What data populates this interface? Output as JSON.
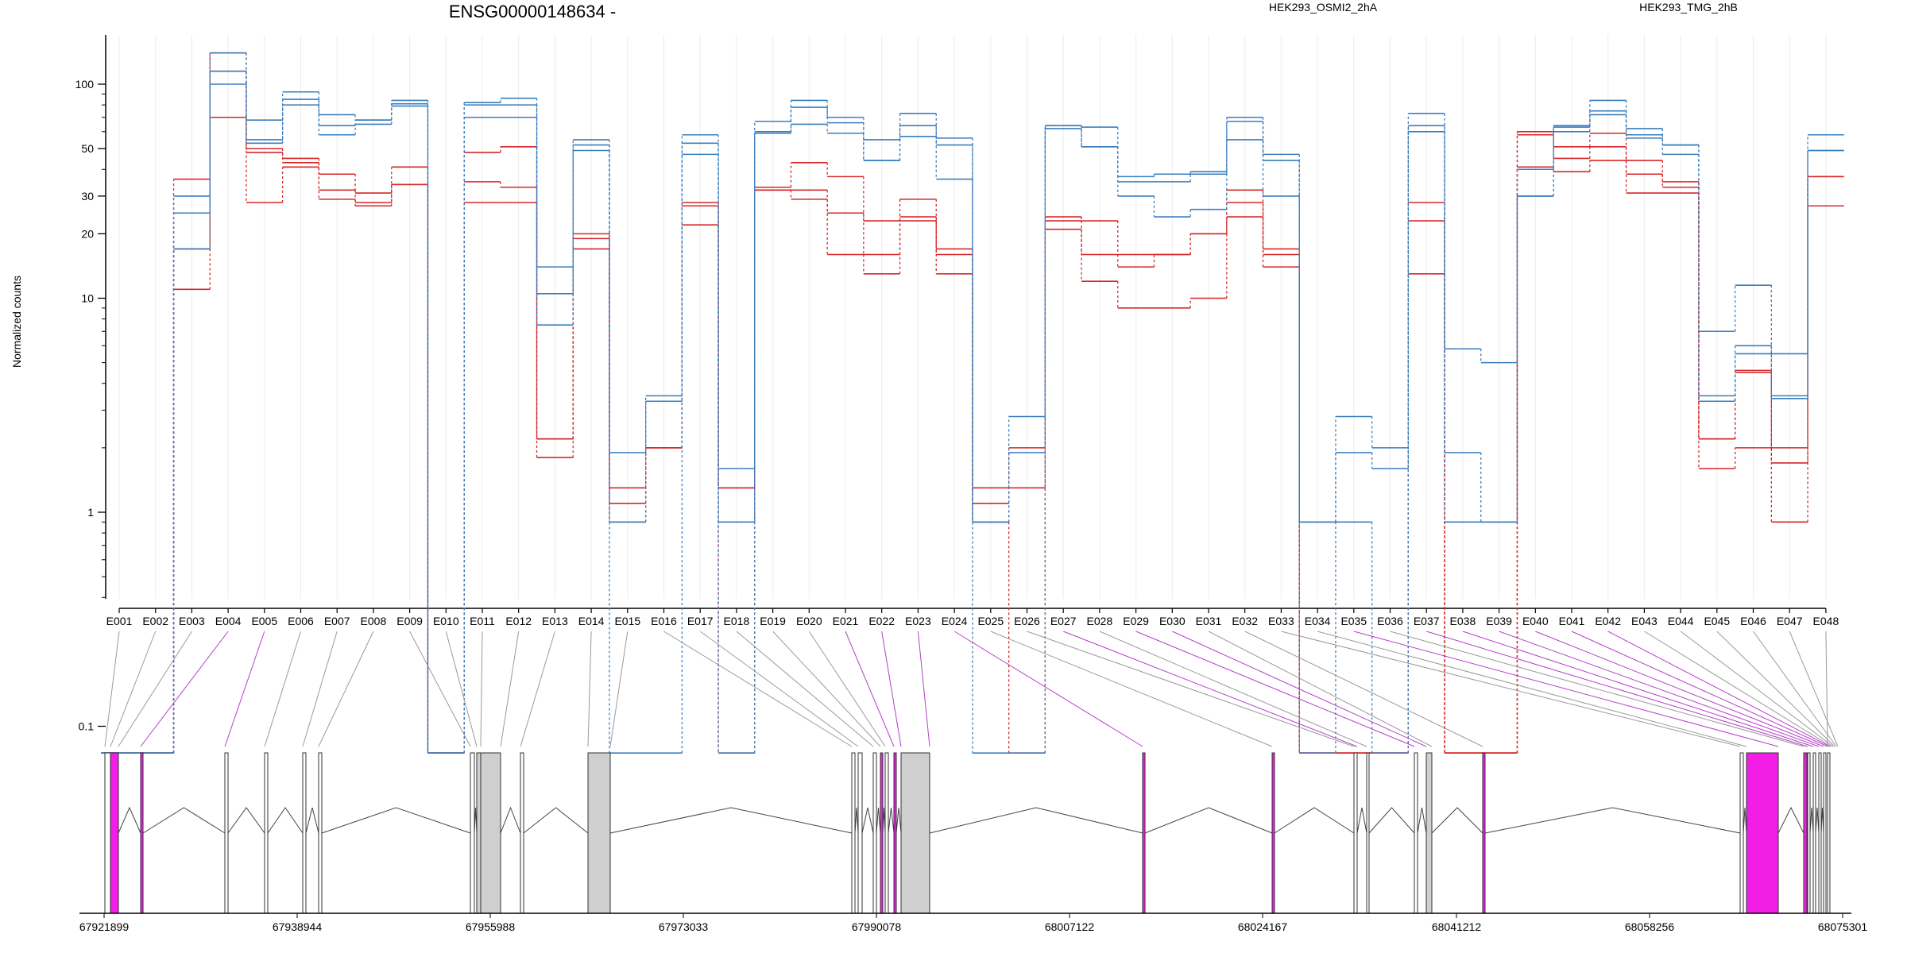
{
  "header": {
    "title": "ENSG00000148634 -",
    "legend": [
      {
        "name": "HEK293_OSMI2_2hA",
        "color": "#d62728"
      },
      {
        "name": "HEK293_TMG_2hB",
        "color": "#3a7ebd"
      }
    ]
  },
  "colors": {
    "red": "#d62728",
    "blue": "#3a7ebd",
    "exon_gray": "#cfcfcf",
    "exon_magenta": "#f21ee6",
    "connector_gray": "#9a9a9a",
    "connector_purple": "#b440c8"
  },
  "chart_data": {
    "type": "line",
    "ylabel": "Normalized counts",
    "yscale": "log",
    "yticks": [
      0.1,
      1,
      10,
      20,
      30,
      50,
      100
    ],
    "ytick_labels": [
      "0.1",
      "1",
      "10",
      "20",
      "30",
      "50",
      "100"
    ],
    "categories": [
      "E001",
      "E002",
      "E003",
      "E004",
      "E005",
      "E006",
      "E007",
      "E008",
      "E009",
      "E010",
      "E011",
      "E012",
      "E013",
      "E014",
      "E015",
      "E016",
      "E017",
      "E018",
      "E019",
      "E020",
      "E021",
      "E022",
      "E023",
      "E024",
      "E025",
      "E026",
      "E027",
      "E028",
      "E029",
      "E030",
      "E031",
      "E032",
      "E033",
      "E034",
      "E035",
      "E036",
      "E037",
      "E038",
      "E039",
      "E040",
      "E041",
      "E042",
      "E043",
      "E044",
      "E045",
      "E046",
      "E047",
      "E048"
    ],
    "series": [
      {
        "name": "HEK293_OSMI2_2hA",
        "color": "red",
        "values": [
          0.075,
          0.075,
          36,
          140,
          50,
          45,
          38,
          31,
          41,
          0.075,
          48,
          51,
          2.2,
          20,
          1.3,
          2,
          28,
          1.3,
          33,
          43,
          37,
          23,
          29,
          17,
          1.3,
          2,
          24,
          23,
          16,
          16,
          20,
          32,
          17,
          0.075,
          0.075,
          0.075,
          28,
          0.075,
          0.075,
          60,
          51,
          59,
          44,
          35,
          2.2,
          4.6,
          2,
          37
        ]
      },
      {
        "name": "HEK293_OSMI2_2hA",
        "color": "red",
        "values": [
          0.075,
          0.075,
          17,
          115,
          48,
          43,
          32,
          28,
          34,
          0.075,
          35,
          33,
          2.2,
          19,
          1.1,
          2,
          27,
          1.3,
          32,
          32,
          25,
          16,
          24,
          16,
          1.1,
          1.3,
          23,
          16,
          14,
          16,
          20,
          28,
          16,
          0.075,
          0.075,
          0.075,
          23,
          0.075,
          0.075,
          58,
          45,
          51,
          38,
          33,
          2.2,
          4.5,
          1.7,
          37
        ]
      },
      {
        "name": "HEK293_OSMI2_2hA",
        "color": "red",
        "values": [
          0.075,
          0.075,
          11,
          70,
          28,
          41,
          29,
          27,
          34,
          0.075,
          28,
          28,
          1.8,
          17,
          0.9,
          2,
          22,
          0.075,
          32,
          29,
          16,
          13,
          23,
          13,
          0.9,
          0.075,
          21,
          12,
          9,
          9,
          10,
          24,
          14,
          0.075,
          0.075,
          0.075,
          13,
          0.075,
          0.075,
          41,
          39,
          44,
          31,
          31,
          1.6,
          2,
          0.9,
          27
        ]
      },
      {
        "name": "HEK293_TMG_2hB",
        "color": "blue",
        "values": [
          0.075,
          0.075,
          30,
          140,
          68,
          92,
          72,
          68,
          84,
          0.075,
          82,
          86,
          14,
          55,
          1.9,
          3.5,
          58,
          1.6,
          67,
          84,
          70,
          55,
          73,
          56,
          0.9,
          2.8,
          64,
          63,
          37,
          38,
          39,
          70,
          47,
          0.9,
          2.8,
          2,
          73,
          5.8,
          5,
          40,
          64,
          84,
          62,
          52,
          7,
          11.5,
          5.5,
          58
        ]
      },
      {
        "name": "HEK293_TMG_2hB",
        "color": "blue",
        "values": [
          0.075,
          0.075,
          25,
          115,
          55,
          85,
          64,
          68,
          81,
          0.075,
          80,
          80,
          10.5,
          52,
          0.9,
          3.3,
          53,
          0.9,
          60,
          78,
          66,
          44,
          64,
          52,
          0.9,
          1.9,
          64,
          51,
          35,
          35,
          38,
          67,
          44,
          0.9,
          1.9,
          1.6,
          64,
          1.9,
          0.9,
          30,
          63,
          75,
          58,
          52,
          3.5,
          6,
          3.5,
          49
        ]
      },
      {
        "name": "HEK293_TMG_2hB",
        "color": "blue",
        "values": [
          0.075,
          0.075,
          17,
          100,
          53,
          80,
          58,
          65,
          79,
          0.075,
          70,
          70,
          7.5,
          49,
          0.075,
          0.075,
          47,
          0.075,
          59,
          65,
          59,
          44,
          57,
          36,
          0.075,
          0.075,
          62,
          51,
          30,
          24,
          26,
          55,
          30,
          0.075,
          0.9,
          0.075,
          60,
          0.9,
          0.9,
          30,
          60,
          72,
          56,
          47,
          3.3,
          5.5,
          3.4,
          49
        ]
      }
    ]
  },
  "gene_model": {
    "coord_labels": [
      "67921899",
      "67938944",
      "67955988",
      "67973033",
      "67990078",
      "68007122",
      "68024167",
      "68041212",
      "68058256",
      "68075301"
    ]
  }
}
